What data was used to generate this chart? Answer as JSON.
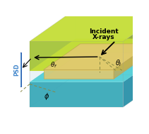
{
  "fig_width": 2.11,
  "fig_height": 1.89,
  "dpi": 100,
  "bg_color": "#ffffff",
  "colors": {
    "box_edge": "#999999",
    "top_layer_fill": "#c8e020",
    "top_layer_side": "#a0b818",
    "top_layer_top": "#d8f030",
    "bottom_layer_fill": "#30c8d0",
    "bottom_layer_side": "#20a0b0",
    "bottom_layer_dark": "#1888a0",
    "interface_fill": "#e8c860",
    "interface_side": "#c0a040",
    "box_glass": "#c8e0f080",
    "psd_color": "#4488cc",
    "arrow_color": "#000000",
    "dashed_color": "#888844"
  },
  "labels": {
    "incident": "Incident",
    "xrays": "X-rays",
    "theta_i": "θi",
    "theta_f": "θf",
    "phi": "φ",
    "psd": "PSD"
  }
}
